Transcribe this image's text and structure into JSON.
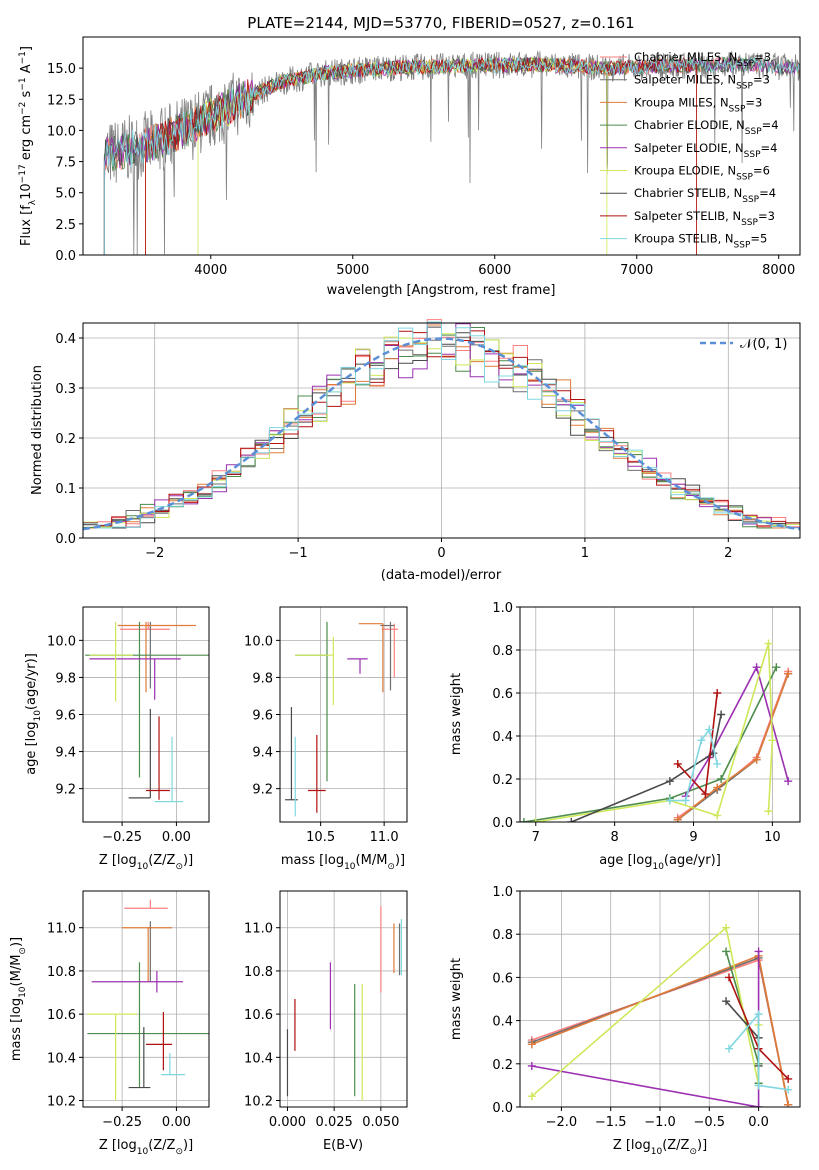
{
  "colors": {
    "chabrier_miles": "#ff7f7f",
    "salpeter_miles": "#6e6e6e",
    "kroupa_miles": "#e07b39",
    "chabrier_elodie": "#4c8c4c",
    "salpeter_elodie": "#9b30b0",
    "kroupa_elodie": "#cde85a",
    "chabrier_stelib": "#4a4a4a",
    "salpeter_stelib": "#b01010",
    "kroupa_stelib": "#7fd8e0",
    "gaussian": "#5b8fd6"
  },
  "chart_data": [
    {
      "id": "spectrum",
      "type": "line",
      "title": "PLATE=2144, MJD=53770, FIBERID=0527, z=0.161",
      "xlabel": "wavelength [Angstrom, rest frame]",
      "ylabel_parts": [
        "Flux [f",
        "λ",
        "10",
        "−17",
        " erg cm",
        "−2",
        " s",
        "−1",
        " A",
        "−1",
        "]"
      ],
      "xlim": [
        3100,
        8150
      ],
      "ylim": [
        0,
        17.5
      ],
      "xticks": [
        4000,
        5000,
        6000,
        7000,
        8000
      ],
      "yticks": [
        "0.0",
        "2.5",
        "5.0",
        "7.5",
        "10.0",
        "12.5",
        "15.0"
      ],
      "legend_position": "right",
      "legend": [
        {
          "label": "Chabrier MILES, N",
          "sub": "SSP",
          "tail": "=3"
        },
        {
          "label": "Salpeter MILES, N",
          "sub": "SSP",
          "tail": "=3"
        },
        {
          "label": "Kroupa MILES, N",
          "sub": "SSP",
          "tail": "=3"
        },
        {
          "label": "Chabrier ELODIE, N",
          "sub": "SSP",
          "tail": "=4"
        },
        {
          "label": "Salpeter ELODIE, N",
          "sub": "SSP",
          "tail": "=4"
        },
        {
          "label": "Kroupa ELODIE, N",
          "sub": "SSP",
          "tail": "=6"
        },
        {
          "label": "Chabrier STELIB, N",
          "sub": "SSP",
          "tail": "=4"
        },
        {
          "label": "Salpeter STELIB, N",
          "sub": "SSP",
          "tail": "=3"
        },
        {
          "label": "Kroupa STELIB, N",
          "sub": "SSP",
          "tail": "=5"
        }
      ],
      "continuum": [
        [
          3250,
          8.0
        ],
        [
          3600,
          9.0
        ],
        [
          3900,
          10.5
        ],
        [
          4200,
          12.3
        ],
        [
          4500,
          13.9
        ],
        [
          4800,
          14.6
        ],
        [
          5200,
          15.0
        ],
        [
          5800,
          15.2
        ],
        [
          6300,
          15.3
        ],
        [
          6800,
          15.0
        ],
        [
          7300,
          15.2
        ],
        [
          7800,
          15.3
        ],
        [
          8150,
          15.0
        ]
      ],
      "model_start": [
        3250,
        3250,
        3540,
        3250,
        3250,
        3910,
        3250,
        3540,
        3250
      ],
      "model_end": [
        8150,
        8150,
        7420,
        8150,
        8150,
        6790,
        8150,
        7420,
        8150
      ]
    },
    {
      "id": "residuals",
      "type": "line",
      "xlabel": "(data-model)/error",
      "ylabel": "Normed distribution",
      "xlim": [
        -2.5,
        2.5
      ],
      "ylim": [
        0,
        0.43
      ],
      "xticks": [
        "−2",
        "−1",
        "0",
        "1",
        "2"
      ],
      "xtick_values": [
        -2,
        -1,
        0,
        1,
        2
      ],
      "yticks": [
        "0.0",
        "0.1",
        "0.2",
        "0.3",
        "0.4"
      ],
      "ytick_values": [
        0,
        0.1,
        0.2,
        0.3,
        0.4
      ],
      "legend": "𝒩(0, 1)",
      "legend_position": "top-right",
      "grid": true,
      "bins": 50
    },
    {
      "id": "age_vs_Z",
      "type": "scatter",
      "xlabel": "Z [log",
      "xlabel_parts": [
        "Z [log",
        "10",
        "(Z/Z",
        "⊙",
        ")]"
      ],
      "ylabel_parts": [
        "age  [log",
        "10",
        "(age/yr)]"
      ],
      "xlim": [
        -0.43,
        0.15
      ],
      "ylim": [
        9.02,
        10.18
      ],
      "xticks": [
        "−0.25",
        "0.00"
      ],
      "xtick_values": [
        -0.25,
        0
      ],
      "yticks": [
        "9.2",
        "9.4",
        "9.6",
        "9.8",
        "10.0"
      ],
      "ytick_values": [
        9.2,
        9.4,
        9.6,
        9.8,
        10.0
      ],
      "grid": true,
      "points": [
        {
          "m": 0,
          "x": -0.13,
          "y": 10.06,
          "dx": [
            0.13,
            0.1
          ],
          "dy": [
            0.0,
            0.04
          ]
        },
        {
          "m": 1,
          "x": -0.12,
          "y": 10.08,
          "dx": [
            0.01,
            0.01
          ],
          "dy": [
            0.34,
            0.02
          ]
        },
        {
          "m": 2,
          "x": -0.14,
          "y": 10.08,
          "dx": [
            0.13,
            0.23
          ],
          "dy": [
            0.36,
            0.02
          ]
        },
        {
          "m": 3,
          "x": -0.17,
          "y": 9.92,
          "dx": [
            0.25,
            0.32
          ],
          "dy": [
            0.66,
            0.18
          ]
        },
        {
          "m": 4,
          "x": -0.1,
          "y": 9.9,
          "dx": [
            0.3,
            0.12
          ],
          "dy": [
            0.22,
            0.0
          ]
        },
        {
          "m": 5,
          "x": -0.28,
          "y": 9.92,
          "dx": [
            0.12,
            0.08
          ],
          "dy": [
            0.25,
            0.18
          ]
        },
        {
          "m": 6,
          "x": -0.12,
          "y": 9.15,
          "dx": [
            0.1,
            0.0
          ],
          "dy": [
            0.0,
            0.48
          ]
        },
        {
          "m": 7,
          "x": -0.08,
          "y": 9.19,
          "dx": [
            0.06,
            0.05
          ],
          "dy": [
            0.05,
            0.4
          ]
        },
        {
          "m": 8,
          "x": -0.02,
          "y": 9.13,
          "dx": [
            0.08,
            0.05
          ],
          "dy": [
            0.0,
            0.35
          ]
        }
      ]
    },
    {
      "id": "age_vs_mass",
      "type": "scatter",
      "xlabel_parts": [
        "mass [log",
        "10",
        "(M/M",
        "⊙",
        ")]"
      ],
      "xlim": [
        10.18,
        11.18
      ],
      "ylim": [
        9.02,
        10.18
      ],
      "xticks": [
        "10.5",
        "11.0"
      ],
      "xtick_values": [
        10.5,
        11.0
      ],
      "yticks": [
        "9.2",
        "9.4",
        "9.6",
        "9.8",
        "10.0"
      ],
      "ytick_values": [
        9.2,
        9.4,
        9.6,
        9.8,
        10.0
      ],
      "grid": true,
      "points": [
        {
          "m": 0,
          "x": 11.08,
          "y": 10.06,
          "dx": [
            0.1,
            0.03
          ],
          "dy": [
            0.26,
            0.03
          ]
        },
        {
          "m": 1,
          "x": 11.05,
          "y": 10.08,
          "dx": [
            0.08,
            0.03
          ],
          "dy": [
            0.35,
            0.02
          ]
        },
        {
          "m": 2,
          "x": 10.99,
          "y": 10.09,
          "dx": [
            0.19,
            0.0
          ],
          "dy": [
            0.37,
            0.0
          ]
        },
        {
          "m": 3,
          "x": 10.55,
          "y": 9.92,
          "dx": [
            0.25,
            0.0
          ],
          "dy": [
            0.68,
            0.18
          ]
        },
        {
          "m": 4,
          "x": 10.81,
          "y": 9.9,
          "dx": [
            0.1,
            0.06
          ],
          "dy": [
            0.08,
            0.0
          ]
        },
        {
          "m": 5,
          "x": 10.6,
          "y": 9.92,
          "dx": [
            0.3,
            0.0
          ],
          "dy": [
            0.27,
            0.1
          ]
        },
        {
          "m": 6,
          "x": 10.27,
          "y": 9.14,
          "dx": [
            0.05,
            0.05
          ],
          "dy": [
            0.0,
            0.5
          ]
        },
        {
          "m": 7,
          "x": 10.47,
          "y": 9.19,
          "dx": [
            0.07,
            0.07
          ],
          "dy": [
            0.12,
            0.3
          ]
        },
        {
          "m": 8,
          "x": 10.3,
          "y": 9.15,
          "dx": [
            0.0,
            0.0
          ],
          "dy": [
            0.1,
            0.33
          ]
        }
      ]
    },
    {
      "id": "weight_vs_age",
      "type": "line",
      "xlabel_parts": [
        "age  [log",
        "10",
        "(age/yr)]"
      ],
      "ylabel": "mass weight",
      "xlim": [
        6.8,
        10.35
      ],
      "ylim": [
        0,
        1.0
      ],
      "xticks": [
        "7",
        "8",
        "9",
        "10"
      ],
      "xtick_values": [
        7,
        8,
        9,
        10
      ],
      "yticks": [
        "0.0",
        "0.2",
        "0.4",
        "0.6",
        "0.8",
        "1.0"
      ],
      "ytick_values": [
        0,
        0.2,
        0.4,
        0.6,
        0.8,
        1.0
      ],
      "grid": true,
      "series": [
        {
          "m": 0,
          "x": [
            8.8,
            9.3,
            9.8,
            10.2
          ],
          "y": [
            0.02,
            0.15,
            0.3,
            0.7
          ]
        },
        {
          "m": 1,
          "x": [
            8.8,
            9.3,
            9.8,
            10.2
          ],
          "y": [
            0.01,
            0.15,
            0.29,
            0.69
          ]
        },
        {
          "m": 2,
          "x": [
            8.8,
            9.3,
            9.8,
            10.2
          ],
          "y": [
            0.01,
            0.16,
            0.29,
            0.69
          ]
        },
        {
          "m": 3,
          "x": [
            6.85,
            8.7,
            9.35,
            10.05
          ],
          "y": [
            0.0,
            0.11,
            0.2,
            0.72
          ]
        },
        {
          "m": 4,
          "x": [
            8.9,
            9.2,
            9.8,
            10.2
          ],
          "y": [
            0.12,
            0.3,
            0.72,
            0.19
          ]
        },
        {
          "m": 5,
          "x": [
            7.0,
            8.7,
            9.3,
            9.95,
            10.0,
            9.95
          ],
          "y": [
            0.0,
            0.1,
            0.03,
            0.83,
            0.38,
            0.05
          ]
        },
        {
          "m": 6,
          "x": [
            7.45,
            8.7,
            9.25,
            9.35
          ],
          "y": [
            0.0,
            0.19,
            0.32,
            0.5
          ]
        },
        {
          "m": 7,
          "x": [
            8.8,
            9.15,
            9.3
          ],
          "y": [
            0.27,
            0.13,
            0.6
          ]
        },
        {
          "m": 8,
          "x": [
            8.7,
            8.9,
            9.1,
            9.2,
            9.3
          ],
          "y": [
            0.1,
            0.1,
            0.38,
            0.43,
            0.27
          ]
        }
      ]
    },
    {
      "id": "mass_vs_Z",
      "type": "scatter",
      "xlabel_parts": [
        "Z [log",
        "10",
        "(Z/Z",
        "⊙",
        ")]"
      ],
      "ylabel_parts": [
        "mass [log",
        "10",
        "(M/M",
        "⊙",
        ")]"
      ],
      "xlim": [
        -0.43,
        0.15
      ],
      "ylim": [
        10.17,
        11.17
      ],
      "xticks": [
        "−0.25",
        "0.00"
      ],
      "xtick_values": [
        -0.25,
        0
      ],
      "yticks": [
        "10.2",
        "10.4",
        "10.6",
        "10.8",
        "11.0"
      ],
      "ytick_values": [
        10.2,
        10.4,
        10.6,
        10.8,
        11.0
      ],
      "grid": true,
      "points": [
        {
          "m": 0,
          "x": -0.12,
          "y": 11.09,
          "dx": [
            0.12,
            0.08
          ],
          "dy": [
            0.0,
            0.04
          ]
        },
        {
          "m": 1,
          "x": -0.12,
          "y": 11.0,
          "dx": [
            0.01,
            0.01
          ],
          "dy": [
            0.25,
            0.03
          ]
        },
        {
          "m": 2,
          "x": -0.13,
          "y": 11.0,
          "dx": [
            0.12,
            0.11
          ],
          "dy": [
            0.25,
            0.0
          ]
        },
        {
          "m": 3,
          "x": -0.17,
          "y": 10.51,
          "dx": [
            0.24,
            0.32
          ],
          "dy": [
            0.25,
            0.33
          ]
        },
        {
          "m": 4,
          "x": -0.09,
          "y": 10.75,
          "dx": [
            0.3,
            0.12
          ],
          "dy": [
            0.05,
            0.05
          ]
        },
        {
          "m": 5,
          "x": -0.28,
          "y": 10.6,
          "dx": [
            0.13,
            0.1
          ],
          "dy": [
            0.4,
            0.0
          ]
        },
        {
          "m": 6,
          "x": -0.15,
          "y": 10.26,
          "dx": [
            0.07,
            0.03
          ],
          "dy": [
            0.0,
            0.28
          ]
        },
        {
          "m": 7,
          "x": -0.06,
          "y": 10.46,
          "dx": [
            0.08,
            0.04
          ],
          "dy": [
            0.12,
            0.15
          ]
        },
        {
          "m": 8,
          "x": -0.03,
          "y": 10.32,
          "dx": [
            0.04,
            0.07
          ],
          "dy": [
            0.0,
            0.1
          ]
        }
      ]
    },
    {
      "id": "mass_vs_ebv",
      "type": "scatter",
      "xlabel": "E(B-V)",
      "xlim": [
        -0.004,
        0.064
      ],
      "ylim": [
        10.17,
        11.17
      ],
      "xticks": [
        "0.000",
        "0.025",
        "0.050"
      ],
      "xtick_values": [
        0,
        0.025,
        0.05
      ],
      "yticks": [
        "10.2",
        "10.4",
        "10.6",
        "10.8",
        "11.0"
      ],
      "ytick_values": [
        10.2,
        10.4,
        10.6,
        10.8,
        11.0
      ],
      "grid": true,
      "points": [
        {
          "m": 0,
          "x": 0.05,
          "y": 10.95,
          "dx": [
            0,
            0
          ],
          "dy": [
            0.25,
            0.15
          ]
        },
        {
          "m": 1,
          "x": 0.06,
          "y": 10.92,
          "dx": [
            0,
            0
          ],
          "dy": [
            0.14,
            0.1
          ]
        },
        {
          "m": 2,
          "x": 0.057,
          "y": 10.92,
          "dx": [
            0,
            0
          ],
          "dy": [
            0.13,
            0.1
          ]
        },
        {
          "m": 3,
          "x": 0.036,
          "y": 10.6,
          "dx": [
            0,
            0
          ],
          "dy": [
            0.38,
            0.14
          ]
        },
        {
          "m": 4,
          "x": 0.023,
          "y": 10.68,
          "dx": [
            0,
            0
          ],
          "dy": [
            0.15,
            0.16
          ]
        },
        {
          "m": 5,
          "x": 0.04,
          "y": 10.48,
          "dx": [
            0,
            0
          ],
          "dy": [
            0.28,
            0.26
          ]
        },
        {
          "m": 6,
          "x": 0.0,
          "y": 10.38,
          "dx": [
            0,
            0
          ],
          "dy": [
            0.16,
            0.15
          ]
        },
        {
          "m": 7,
          "x": 0.004,
          "y": 10.55,
          "dx": [
            0,
            0
          ],
          "dy": [
            0.12,
            0.12
          ]
        },
        {
          "m": 8,
          "x": 0.061,
          "y": 10.9,
          "dx": [
            0,
            0
          ],
          "dy": [
            0.12,
            0.14
          ]
        }
      ]
    },
    {
      "id": "weight_vs_Z",
      "type": "line",
      "xlabel_parts": [
        "Z [log",
        "10",
        "(Z/Z",
        "⊙",
        ")]"
      ],
      "ylabel": "mass weight",
      "xlim": [
        -2.42,
        0.42
      ],
      "ylim": [
        0,
        1.0
      ],
      "xticks": [
        "−2.0",
        "−1.5",
        "−1.0",
        "−0.5",
        "0.0"
      ],
      "xtick_values": [
        -2.0,
        -1.5,
        -1.0,
        -0.5,
        0.0
      ],
      "yticks": [
        "0.0",
        "0.2",
        "0.4",
        "0.6",
        "0.8",
        "1.0"
      ],
      "ytick_values": [
        0,
        0.2,
        0.4,
        0.6,
        0.8,
        1.0
      ],
      "grid": true,
      "series": [
        {
          "m": 0,
          "x": [
            -2.3,
            0.0,
            0.3
          ],
          "y": [
            0.31,
            0.68,
            0.01
          ]
        },
        {
          "m": 1,
          "x": [
            -2.3,
            0.0,
            0.3
          ],
          "y": [
            0.3,
            0.69,
            0.01
          ]
        },
        {
          "m": 2,
          "x": [
            -2.3,
            0.0,
            0.3
          ],
          "y": [
            0.29,
            0.7,
            0.01
          ]
        },
        {
          "m": 3,
          "x": [
            -0.33,
            0.0,
            0.0
          ],
          "y": [
            0.72,
            0.2,
            0.11
          ]
        },
        {
          "m": 4,
          "x": [
            -2.3,
            0.0,
            0.0
          ],
          "y": [
            0.19,
            0.0,
            0.72
          ]
        },
        {
          "m": 5,
          "x": [
            -2.3,
            -0.33,
            0.0,
            0.0
          ],
          "y": [
            0.05,
            0.83,
            0.1,
            0.38
          ]
        },
        {
          "m": 6,
          "x": [
            -0.33,
            0.0,
            0.0
          ],
          "y": [
            0.49,
            0.32,
            0.19
          ]
        },
        {
          "m": 7,
          "x": [
            -0.3,
            0.0,
            0.3
          ],
          "y": [
            0.6,
            0.27,
            0.13
          ]
        },
        {
          "m": 8,
          "x": [
            -0.3,
            0.0,
            0.0,
            0.3
          ],
          "y": [
            0.27,
            0.43,
            0.1,
            0.08
          ]
        }
      ]
    }
  ]
}
